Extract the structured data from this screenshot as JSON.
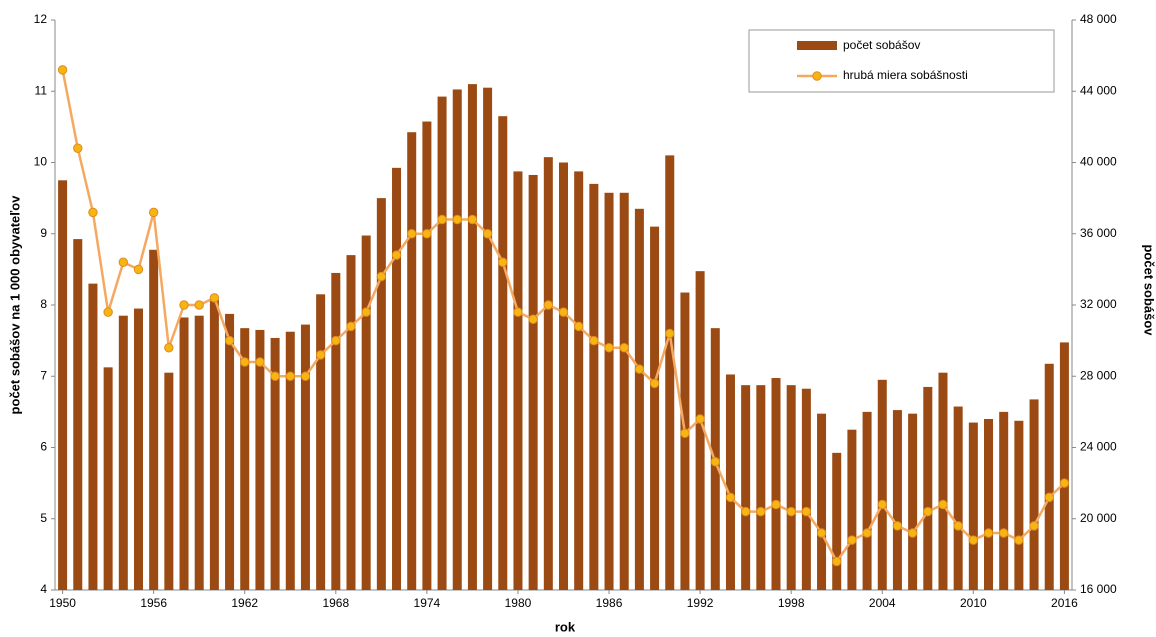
{
  "chart_data": {
    "type": "combo",
    "x_label": "rok",
    "y_label": "počet sobášov na 1 000 obyvateľov",
    "y2_label": "počet sobášov",
    "x": [
      1950,
      1951,
      1952,
      1953,
      1954,
      1955,
      1956,
      1957,
      1958,
      1959,
      1960,
      1961,
      1962,
      1963,
      1964,
      1965,
      1966,
      1967,
      1968,
      1969,
      1970,
      1971,
      1972,
      1973,
      1974,
      1975,
      1976,
      1977,
      1978,
      1979,
      1980,
      1981,
      1982,
      1983,
      1984,
      1985,
      1986,
      1987,
      1988,
      1989,
      1990,
      1991,
      1992,
      1993,
      1994,
      1995,
      1996,
      1997,
      1998,
      1999,
      2000,
      2001,
      2002,
      2003,
      2004,
      2005,
      2006,
      2007,
      2008,
      2009,
      2010,
      2011,
      2012,
      2013,
      2014,
      2015,
      2016
    ],
    "series": [
      {
        "name": "počet sobášov",
        "type": "bar",
        "axis": "y2",
        "color": "#9a4a12",
        "values": [
          39000,
          35700,
          33200,
          28500,
          31400,
          31800,
          35100,
          28200,
          31300,
          31400,
          32300,
          31500,
          30700,
          30600,
          30150,
          30500,
          30900,
          32600,
          33800,
          34800,
          35900,
          38000,
          39700,
          41700,
          42300,
          43700,
          44100,
          44400,
          44200,
          42600,
          39500,
          39300,
          40300,
          40000,
          39500,
          38800,
          38300,
          38300,
          37400,
          36400,
          40400,
          32700,
          33900,
          30700,
          28100,
          27500,
          27500,
          27900,
          27500,
          27300,
          25900,
          23700,
          25000,
          26000,
          27800,
          26100,
          25900,
          27400,
          28200,
          26300,
          25400,
          25600,
          26000,
          25500,
          26700,
          28700,
          29900
        ]
      },
      {
        "name": "hrubá miera sobášnosti",
        "type": "line",
        "axis": "y",
        "color": "#f5a860",
        "marker_color": "#f7b512",
        "values": [
          11.3,
          10.2,
          9.3,
          7.9,
          8.6,
          8.5,
          9.3,
          7.4,
          8.0,
          8.0,
          8.1,
          7.5,
          7.2,
          7.2,
          7.0,
          7.0,
          7.0,
          7.3,
          7.5,
          7.7,
          7.9,
          8.4,
          8.7,
          9.0,
          9.0,
          9.2,
          9.2,
          9.2,
          9.0,
          8.6,
          7.9,
          7.8,
          8.0,
          7.9,
          7.7,
          7.5,
          7.4,
          7.4,
          7.1,
          6.9,
          7.6,
          6.2,
          6.4,
          5.8,
          5.3,
          5.1,
          5.1,
          5.2,
          5.1,
          5.1,
          4.8,
          4.4,
          4.7,
          4.8,
          5.2,
          4.9,
          4.8,
          5.1,
          5.2,
          4.9,
          4.7,
          4.8,
          4.8,
          4.7,
          4.9,
          5.3,
          5.5
        ]
      }
    ],
    "xlim": [
      1949.5,
      2016.5
    ],
    "xticks": [
      1950,
      1956,
      1962,
      1968,
      1974,
      1980,
      1986,
      1992,
      1998,
      2004,
      2010,
      2016
    ],
    "ylim": [
      4,
      12
    ],
    "yticks": [
      4,
      5,
      6,
      7,
      8,
      9,
      10,
      11,
      12
    ],
    "y2lim": [
      16000,
      48000
    ],
    "y2ticks": [
      {
        "value": 16000,
        "label": "16 000"
      },
      {
        "value": 20000,
        "label": "20 000"
      },
      {
        "value": 24000,
        "label": "24 000"
      },
      {
        "value": 28000,
        "label": "28 000"
      },
      {
        "value": 32000,
        "label": "32 000"
      },
      {
        "value": 36000,
        "label": "36 000"
      },
      {
        "value": 40000,
        "label": "40 000"
      },
      {
        "value": 44000,
        "label": "44 000"
      },
      {
        "value": 48000,
        "label": "48 000"
      }
    ],
    "legend": "upper right",
    "grid": false
  }
}
